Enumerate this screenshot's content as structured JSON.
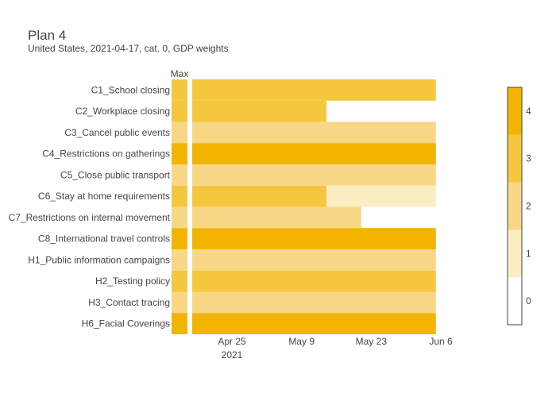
{
  "header": {
    "title": "Plan 4",
    "subtitle": "United States, 2021-04-17, cat. 0, GDP weights"
  },
  "colors": {
    "level_0": "#ffffff",
    "level_1": "#fdedc3",
    "level_2": "#f8d886",
    "level_3": "#f4c73e",
    "level_4": "#f2b400",
    "divider": "#ffffff",
    "colorbar_border": "#444444"
  },
  "chart_data": {
    "type": "heatmap",
    "title": "Plan 4",
    "subtitle": "United States, 2021-04-17, cat. 0, GDP weights",
    "max_column_label": "Max",
    "x_axis": {
      "start_date": "2021-04-17",
      "end_date": "2021-06-05",
      "ticks": [
        {
          "date": "2021-04-25",
          "label": "Apr 25"
        },
        {
          "date": "2021-05-09",
          "label": "May 9"
        },
        {
          "date": "2021-05-23",
          "label": "May 23"
        },
        {
          "date": "2021-06-06",
          "label": "Jun 6"
        }
      ],
      "year_label": "2021"
    },
    "colorbar": {
      "min": 0,
      "max": 4,
      "ticks": [
        0,
        1,
        2,
        3,
        4
      ]
    },
    "rows": [
      {
        "name": "C1_School closing",
        "max": 3,
        "segments": [
          {
            "start": "2021-04-17",
            "end": "2021-06-05",
            "value": 3
          }
        ]
      },
      {
        "name": "C2_Workplace closing",
        "max": 3,
        "segments": [
          {
            "start": "2021-04-17",
            "end": "2021-05-14",
            "value": 3
          }
        ]
      },
      {
        "name": "C3_Cancel public events",
        "max": 2,
        "segments": [
          {
            "start": "2021-04-17",
            "end": "2021-06-05",
            "value": 2
          }
        ]
      },
      {
        "name": "C4_Restrictions on gatherings",
        "max": 4,
        "segments": [
          {
            "start": "2021-04-17",
            "end": "2021-06-05",
            "value": 4
          }
        ]
      },
      {
        "name": "C5_Close public transport",
        "max": 2,
        "segments": [
          {
            "start": "2021-04-17",
            "end": "2021-06-05",
            "value": 2
          }
        ]
      },
      {
        "name": "C6_Stay at home requirements",
        "max": 3,
        "segments": [
          {
            "start": "2021-04-17",
            "end": "2021-05-14",
            "value": 3
          },
          {
            "start": "2021-05-14",
            "end": "2021-06-05",
            "value": 1
          }
        ]
      },
      {
        "name": "C7_Restrictions on internal movement",
        "max": 2,
        "segments": [
          {
            "start": "2021-04-17",
            "end": "2021-05-21",
            "value": 2
          }
        ]
      },
      {
        "name": "C8_International travel controls",
        "max": 4,
        "segments": [
          {
            "start": "2021-04-17",
            "end": "2021-06-05",
            "value": 4
          }
        ]
      },
      {
        "name": "H1_Public information campaigns",
        "max": 2,
        "segments": [
          {
            "start": "2021-04-17",
            "end": "2021-06-05",
            "value": 2
          }
        ]
      },
      {
        "name": "H2_Testing policy",
        "max": 3,
        "segments": [
          {
            "start": "2021-04-17",
            "end": "2021-06-05",
            "value": 3
          }
        ]
      },
      {
        "name": "H3_Contact tracing",
        "max": 2,
        "segments": [
          {
            "start": "2021-04-17",
            "end": "2021-06-05",
            "value": 2
          }
        ]
      },
      {
        "name": "H6_Facial Coverings",
        "max": 4,
        "segments": [
          {
            "start": "2021-04-17",
            "end": "2021-06-05",
            "value": 4
          }
        ]
      }
    ]
  }
}
